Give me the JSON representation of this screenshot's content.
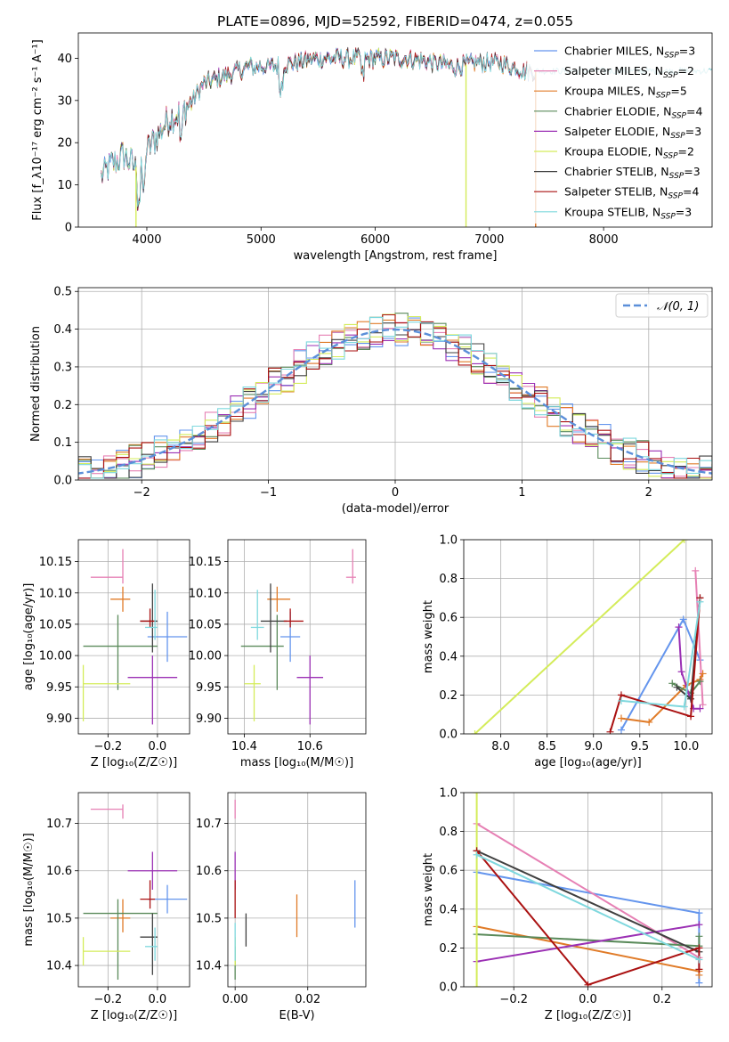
{
  "colors": {
    "Chabrier MILES": "#6495ed",
    "Salpeter MILES": "#e680b4",
    "Kroupa MILES": "#e07b28",
    "Chabrier ELODIE": "#5a8a5a",
    "Salpeter ELODIE": "#9b30b4",
    "Kroupa ELODIE": "#d4ec5a",
    "Chabrier STELIB": "#404040",
    "Salpeter STELIB": "#aa1111",
    "Kroupa STELIB": "#7fd8de",
    "grid": "#b0b0b0",
    "normal_curve": "#5b8fd9"
  },
  "chart_data": [
    {
      "id": "spectrum",
      "type": "line",
      "title": "PLATE=0896, MJD=52592, FIBERID=0474, z=0.055",
      "xlabel": "wavelength [Angstrom, rest frame]",
      "ylabel": "Flux [f_λ10⁻¹⁷ erg cm⁻² s⁻¹ A⁻¹]",
      "xlim": [
        3400,
        8950
      ],
      "ylim": [
        0,
        46
      ],
      "xticks": [
        4000,
        5000,
        6000,
        7000,
        8000
      ],
      "yticks": [
        0,
        10,
        20,
        30,
        40
      ],
      "grid": false,
      "legend_position": "right",
      "legend": [
        {
          "model": "Chabrier MILES",
          "nssp": "3"
        },
        {
          "model": "Salpeter MILES",
          "nssp": "2"
        },
        {
          "model": "Kroupa MILES",
          "nssp": "5"
        },
        {
          "model": "Chabrier ELODIE",
          "nssp": "4"
        },
        {
          "model": "Salpeter ELODIE",
          "nssp": "3"
        },
        {
          "model": "Kroupa ELODIE",
          "nssp": "2"
        },
        {
          "model": "Chabrier STELIB",
          "nssp": "3"
        },
        {
          "model": "Salpeter STELIB",
          "nssp": "4"
        },
        {
          "model": "Kroupa STELIB",
          "nssp": "3"
        }
      ],
      "continuum": {
        "x": [
          3600,
          3700,
          3800,
          3900,
          4000,
          4100,
          4200,
          4300,
          4400,
          4500,
          4700,
          4900,
          5100,
          5300,
          5500,
          5700,
          5900,
          6100,
          6300,
          6500,
          6700,
          6900,
          7100,
          7300,
          7400
        ],
        "y": [
          12,
          15,
          17,
          14,
          18,
          22,
          26,
          27,
          30,
          34,
          36,
          38,
          38,
          39,
          40,
          40,
          40,
          40,
          40,
          39,
          38,
          39,
          39,
          37,
          37
        ]
      },
      "series_ranges": [
        {
          "model": "Chabrier MILES",
          "x": [
            3600,
            7400
          ]
        },
        {
          "model": "Salpeter MILES",
          "x": [
            3600,
            7400
          ]
        },
        {
          "model": "Kroupa MILES",
          "x": [
            3600,
            7410
          ]
        },
        {
          "model": "Chabrier ELODIE",
          "x": [
            3600,
            6800
          ]
        },
        {
          "model": "Salpeter ELODIE",
          "x": [
            3600,
            6800
          ]
        },
        {
          "model": "Kroupa ELODIE",
          "x": [
            3600,
            6800
          ]
        },
        {
          "model": "Chabrier STELIB",
          "x": [
            3600,
            8950
          ]
        },
        {
          "model": "Salpeter STELIB",
          "x": [
            3900,
            7410
          ]
        },
        {
          "model": "Kroupa STELIB",
          "x": [
            3600,
            8950
          ]
        }
      ]
    },
    {
      "id": "residuals",
      "type": "histogram",
      "xlabel": "(data-model)/error",
      "ylabel": "Normed distribution",
      "xlim": [
        -2.5,
        2.5
      ],
      "ylim": [
        0,
        0.51
      ],
      "xticks": [
        -2,
        -1,
        0,
        1,
        2
      ],
      "yticks": [
        0.0,
        0.1,
        0.2,
        0.3,
        0.4,
        0.5
      ],
      "grid": true,
      "legend_position": "top-right",
      "legend": [
        {
          "label": "𝒩(0, 1)"
        }
      ],
      "bin_width": 0.1,
      "normal": {
        "mean": 0,
        "sigma": 1
      }
    },
    {
      "id": "age_vs_Z",
      "type": "scatter",
      "xlabel": "Z [log₁₀(Z/Z☉)]",
      "ylabel": "age [log₁₀(age/yr)]",
      "xlim": [
        -0.32,
        0.13
      ],
      "ylim": [
        9.875,
        10.185
      ],
      "xticks": [
        -0.2,
        0.0
      ],
      "yticks": [
        9.9,
        9.95,
        10.0,
        10.05,
        10.1,
        10.15
      ],
      "grid": true,
      "points": [
        {
          "model": "Chabrier MILES",
          "x": 0.04,
          "y": 10.03,
          "ex": [
            0.08,
            0.08
          ],
          "ey": [
            0.04,
            0.04
          ]
        },
        {
          "model": "Salpeter MILES",
          "x": -0.14,
          "y": 10.125,
          "ex": [
            0.13,
            0.0
          ],
          "ey": [
            0.01,
            0.045
          ]
        },
        {
          "model": "Kroupa MILES",
          "x": -0.14,
          "y": 10.09,
          "ex": [
            0.05,
            0.03
          ],
          "ey": [
            0.02,
            0.02
          ]
        },
        {
          "model": "Chabrier ELODIE",
          "x": -0.16,
          "y": 10.015,
          "ex": [
            0.14,
            0.16
          ],
          "ey": [
            0.07,
            0.05
          ]
        },
        {
          "model": "Salpeter ELODIE",
          "x": -0.02,
          "y": 9.965,
          "ex": [
            0.1,
            0.1
          ],
          "ey": [
            0.075,
            0.035
          ]
        },
        {
          "model": "Kroupa ELODIE",
          "x": -0.3,
          "y": 9.955,
          "ex": [
            0.0,
            0.19
          ],
          "ey": [
            0.06,
            0.03
          ]
        },
        {
          "model": "Chabrier STELIB",
          "x": -0.02,
          "y": 10.055,
          "ex": [
            0.05,
            0.02
          ],
          "ey": [
            0.05,
            0.06
          ]
        },
        {
          "model": "Salpeter STELIB",
          "x": -0.03,
          "y": 10.055,
          "ex": [
            0.04,
            0.02
          ],
          "ey": [
            0.01,
            0.02
          ]
        },
        {
          "model": "Kroupa STELIB",
          "x": -0.01,
          "y": 10.045,
          "ex": [
            0.04,
            0.01
          ],
          "ey": [
            0.02,
            0.06
          ]
        }
      ]
    },
    {
      "id": "age_vs_mass",
      "type": "scatter",
      "xlabel": "mass [log₁₀(M/M☉)]",
      "ylabel": "",
      "xlim": [
        10.35,
        10.77
      ],
      "ylim": [
        9.875,
        10.185
      ],
      "xticks": [
        10.4,
        10.6
      ],
      "yticks": [
        9.9,
        9.95,
        10.0,
        10.05,
        10.1,
        10.15
      ],
      "grid": true,
      "points": [
        {
          "model": "Chabrier MILES",
          "x": 10.54,
          "y": 10.03,
          "ex": [
            0.03,
            0.03
          ],
          "ey": [
            0.04,
            0.04
          ]
        },
        {
          "model": "Salpeter MILES",
          "x": 10.73,
          "y": 10.125,
          "ex": [
            0.02,
            0.01
          ],
          "ey": [
            0.01,
            0.045
          ]
        },
        {
          "model": "Kroupa MILES",
          "x": 10.5,
          "y": 10.09,
          "ex": [
            0.03,
            0.04
          ],
          "ey": [
            0.02,
            0.02
          ]
        },
        {
          "model": "Chabrier ELODIE",
          "x": 10.5,
          "y": 10.015,
          "ex": [
            0.11,
            0.02
          ],
          "ey": [
            0.07,
            0.05
          ]
        },
        {
          "model": "Salpeter ELODIE",
          "x": 10.6,
          "y": 9.965,
          "ex": [
            0.04,
            0.04
          ],
          "ey": [
            0.075,
            0.035
          ]
        },
        {
          "model": "Kroupa ELODIE",
          "x": 10.43,
          "y": 9.955,
          "ex": [
            0.03,
            0.02
          ],
          "ey": [
            0.06,
            0.03
          ]
        },
        {
          "model": "Chabrier STELIB",
          "x": 10.48,
          "y": 10.055,
          "ex": [
            0.03,
            0.05
          ],
          "ey": [
            0.05,
            0.06
          ]
        },
        {
          "model": "Salpeter STELIB",
          "x": 10.54,
          "y": 10.055,
          "ex": [
            0.02,
            0.04
          ],
          "ey": [
            0.01,
            0.02
          ]
        },
        {
          "model": "Kroupa STELIB",
          "x": 10.44,
          "y": 10.045,
          "ex": [
            0.02,
            0.02
          ],
          "ey": [
            0.02,
            0.06
          ]
        }
      ]
    },
    {
      "id": "weight_vs_age",
      "type": "line",
      "xlabel": "age  [log₁₀(age/yr)]",
      "ylabel": "mass weight",
      "xlim": [
        7.6,
        10.28
      ],
      "ylim": [
        0,
        1.0
      ],
      "xticks": [
        8.0,
        8.5,
        9.0,
        9.5,
        10.0
      ],
      "yticks": [
        0.0,
        0.2,
        0.4,
        0.6,
        0.8,
        1.0
      ],
      "grid": true,
      "series": [
        {
          "model": "Chabrier MILES",
          "x": [
            9.3,
            9.97,
            10.15
          ],
          "y": [
            0.02,
            0.59,
            0.38
          ]
        },
        {
          "model": "Salpeter MILES",
          "x": [
            10.1,
            10.18
          ],
          "y": [
            0.84,
            0.15
          ]
        },
        {
          "model": "Kroupa MILES",
          "x": [
            9.3,
            9.6,
            10.0,
            10.15,
            10.18
          ],
          "y": [
            0.08,
            0.06,
            0.25,
            0.28,
            0.31
          ]
        },
        {
          "model": "Chabrier ELODIE",
          "x": [
            9.85,
            10.05,
            10.15
          ],
          "y": [
            0.26,
            0.21,
            0.27
          ]
        },
        {
          "model": "Salpeter ELODIE",
          "x": [
            9.92,
            9.95,
            10.08,
            10.15
          ],
          "y": [
            0.55,
            0.32,
            0.13,
            0.13
          ]
        },
        {
          "model": "Kroupa ELODIE",
          "x": [
            7.72,
            9.98
          ],
          "y": [
            0.0,
            1.0
          ]
        },
        {
          "model": "Chabrier STELIB",
          "x": [
            9.9,
            10.05,
            10.15
          ],
          "y": [
            0.24,
            0.18,
            0.7
          ]
        },
        {
          "model": "Salpeter STELIB",
          "x": [
            9.18,
            9.3,
            10.05,
            10.15
          ],
          "y": [
            0.01,
            0.2,
            0.09,
            0.7
          ]
        },
        {
          "model": "Kroupa STELIB",
          "x": [
            9.3,
            9.98,
            10.15
          ],
          "y": [
            0.17,
            0.14,
            0.68
          ]
        }
      ]
    },
    {
      "id": "mass_vs_Z",
      "type": "scatter",
      "xlabel": "Z [log₁₀(Z/Z☉)]",
      "ylabel": "mass [log₁₀(M/M☉)]",
      "xlim": [
        -0.32,
        0.13
      ],
      "ylim": [
        10.355,
        10.765
      ],
      "xticks": [
        -0.2,
        0.0
      ],
      "yticks": [
        10.4,
        10.5,
        10.6,
        10.7
      ],
      "grid": true,
      "points": [
        {
          "model": "Chabrier MILES",
          "x": 0.04,
          "y": 10.54,
          "ex": [
            0.08,
            0.08
          ],
          "ey": [
            0.03,
            0.03
          ]
        },
        {
          "model": "Salpeter MILES",
          "x": -0.14,
          "y": 10.73,
          "ex": [
            0.13,
            0.0
          ],
          "ey": [
            0.02,
            0.01
          ]
        },
        {
          "model": "Kroupa MILES",
          "x": -0.14,
          "y": 10.5,
          "ex": [
            0.05,
            0.03
          ],
          "ey": [
            0.03,
            0.04
          ]
        },
        {
          "model": "Chabrier ELODIE",
          "x": -0.16,
          "y": 10.51,
          "ex": [
            0.14,
            0.16
          ],
          "ey": [
            0.14,
            0.03
          ]
        },
        {
          "model": "Salpeter ELODIE",
          "x": -0.02,
          "y": 10.6,
          "ex": [
            0.1,
            0.1
          ],
          "ey": [
            0.04,
            0.04
          ]
        },
        {
          "model": "Kroupa ELODIE",
          "x": -0.3,
          "y": 10.43,
          "ex": [
            0.0,
            0.19
          ],
          "ey": [
            0.03,
            0.03
          ]
        },
        {
          "model": "Chabrier STELIB",
          "x": -0.02,
          "y": 10.46,
          "ex": [
            0.05,
            0.02
          ],
          "ey": [
            0.08,
            0.05
          ]
        },
        {
          "model": "Salpeter STELIB",
          "x": -0.03,
          "y": 10.54,
          "ex": [
            0.04,
            0.02
          ],
          "ey": [
            0.02,
            0.04
          ]
        },
        {
          "model": "Kroupa STELIB",
          "x": -0.01,
          "y": 10.44,
          "ex": [
            0.04,
            0.01
          ],
          "ey": [
            0.03,
            0.04
          ]
        }
      ]
    },
    {
      "id": "mass_vs_ebv",
      "type": "scatter",
      "xlabel": "E(B-V)",
      "ylabel": "",
      "xlim": [
        -0.002,
        0.036
      ],
      "ylim": [
        10.355,
        10.765
      ],
      "xticks": [
        0.0,
        0.02
      ],
      "yticks": [
        10.4,
        10.5,
        10.6,
        10.7
      ],
      "grid": true,
      "points": [
        {
          "model": "Chabrier MILES",
          "x": 0.033,
          "y": 10.54,
          "ey": [
            0.06,
            0.04
          ]
        },
        {
          "model": "Salpeter MILES",
          "x": 0.0,
          "y": 10.73,
          "ey": [
            0.02,
            0.02
          ]
        },
        {
          "model": "Kroupa MILES",
          "x": 0.017,
          "y": 10.5,
          "ey": [
            0.04,
            0.05
          ]
        },
        {
          "model": "Chabrier ELODIE",
          "x": 0.0,
          "y": 10.4,
          "ey": [
            0.03,
            0.04
          ]
        },
        {
          "model": "Salpeter ELODIE",
          "x": 0.0,
          "y": 10.6,
          "ey": [
            0.04,
            0.04
          ]
        },
        {
          "model": "Kroupa ELODIE",
          "x": 0.0,
          "y": 10.43,
          "ey": [
            0.03,
            0.03
          ]
        },
        {
          "model": "Chabrier STELIB",
          "x": 0.003,
          "y": 10.47,
          "ey": [
            0.03,
            0.04
          ]
        },
        {
          "model": "Salpeter STELIB",
          "x": 0.0,
          "y": 10.54,
          "ey": [
            0.04,
            0.04
          ]
        },
        {
          "model": "Kroupa STELIB",
          "x": 0.0,
          "y": 10.45,
          "ey": [
            0.04,
            0.04
          ]
        }
      ]
    },
    {
      "id": "weight_vs_Z",
      "type": "line",
      "xlabel": "Z [log₁₀(Z/Z☉)]",
      "ylabel": "mass weight",
      "xlim": [
        -0.335,
        0.335
      ],
      "ylim": [
        0,
        1.0
      ],
      "xticks": [
        -0.2,
        0.0,
        0.2
      ],
      "yticks": [
        0.0,
        0.2,
        0.4,
        0.6,
        0.8,
        1.0
      ],
      "grid": true,
      "series": [
        {
          "model": "Chabrier MILES",
          "x": [
            -0.3,
            0.3,
            0.3
          ],
          "y": [
            0.59,
            0.38,
            0.02
          ]
        },
        {
          "model": "Salpeter MILES",
          "x": [
            -0.3,
            0.3
          ],
          "y": [
            0.84,
            0.15
          ]
        },
        {
          "model": "Kroupa MILES",
          "x": [
            -0.3,
            0.3,
            0.3
          ],
          "y": [
            0.31,
            0.08,
            0.06
          ]
        },
        {
          "model": "Chabrier ELODIE",
          "x": [
            -0.3,
            0.3,
            0.3
          ],
          "y": [
            0.27,
            0.21,
            0.26
          ]
        },
        {
          "model": "Salpeter ELODIE",
          "x": [
            -0.3,
            0.3
          ],
          "y": [
            0.13,
            0.32
          ]
        },
        {
          "model": "Kroupa ELODIE",
          "x": [
            -0.3,
            -0.3
          ],
          "y": [
            0.0,
            1.0
          ]
        },
        {
          "model": "Chabrier STELIB",
          "x": [
            -0.3,
            0.3
          ],
          "y": [
            0.7,
            0.18
          ]
        },
        {
          "model": "Salpeter STELIB",
          "x": [
            -0.3,
            0.0,
            0.3,
            0.3
          ],
          "y": [
            0.7,
            0.01,
            0.2,
            0.09
          ]
        },
        {
          "model": "Kroupa STELIB",
          "x": [
            -0.3,
            0.3
          ],
          "y": [
            0.68,
            0.14
          ]
        }
      ]
    }
  ]
}
